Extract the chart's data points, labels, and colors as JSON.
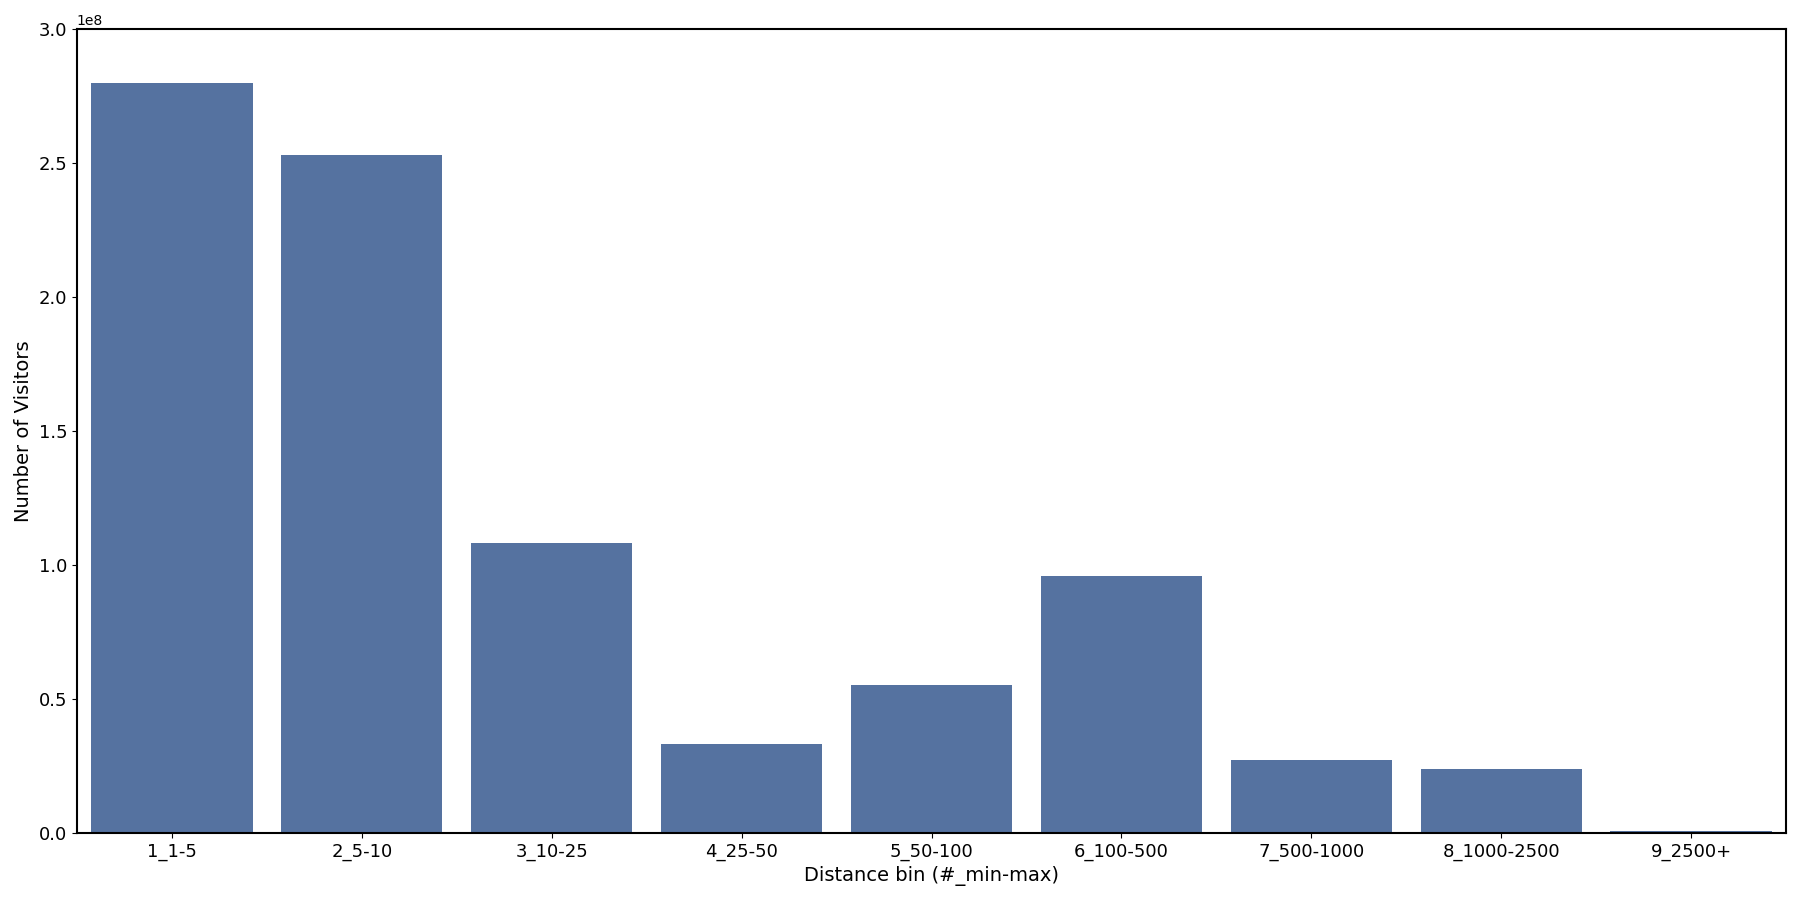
{
  "categories": [
    "1_1-5",
    "2_5-10",
    "3_10-25",
    "4_25-50",
    "5_50-100",
    "6_100-500",
    "7_500-1000",
    "8_1000-2500",
    "9_2500+"
  ],
  "values": [
    280000000,
    253000000,
    108000000,
    33000000,
    55000000,
    96000000,
    27000000,
    24000000,
    500000
  ],
  "bar_color": "#5572A0",
  "xlabel": "Distance bin (#_min-max)",
  "ylabel": "Number of Visitors",
  "background_color": "#ffffff",
  "label_fontsize": 14,
  "tick_fontsize": 13,
  "bar_width": 0.85,
  "ylim": [
    0,
    300000000
  ]
}
